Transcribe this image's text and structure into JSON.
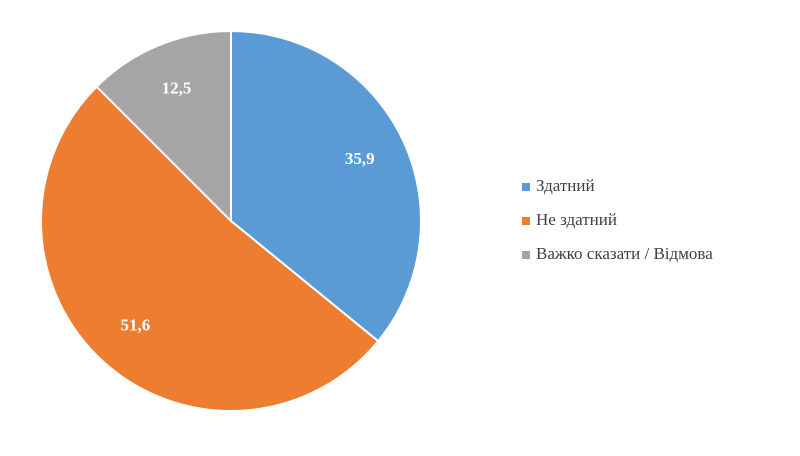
{
  "chart_data": {
    "type": "pie",
    "series": [
      {
        "name": "Здатний",
        "color": "#5b9bd5",
        "values": [
          35.9
        ],
        "value_labels": [
          "35,9"
        ]
      },
      {
        "name": "Не здатний",
        "color": "#ed7d31",
        "values": [
          51.6
        ],
        "value_labels": [
          "51,6"
        ]
      },
      {
        "name": "Важко сказати / Відмова",
        "color": "#a5a5a5",
        "values": [
          12.5
        ],
        "value_labels": [
          "12,5"
        ]
      }
    ],
    "legend": "right"
  }
}
